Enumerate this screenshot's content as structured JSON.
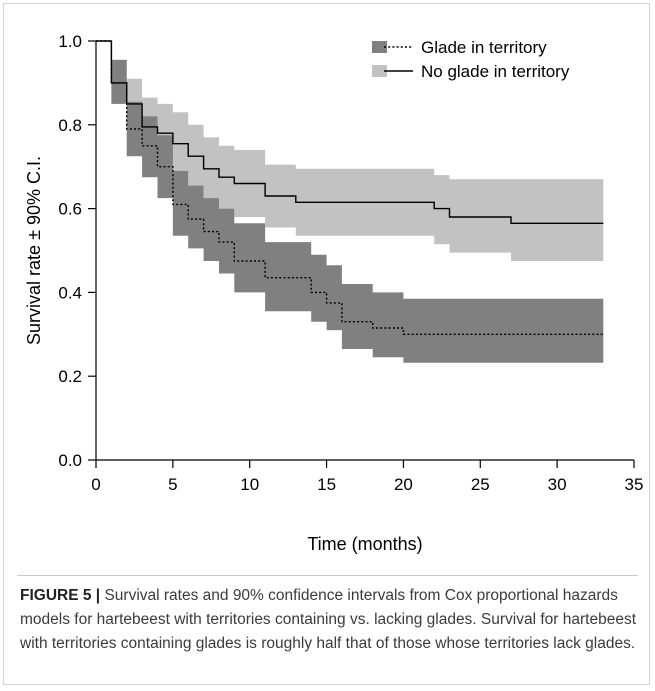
{
  "chart_data": {
    "type": "line",
    "subtype": "kaplan-meier step survival with confidence bands",
    "xlabel": "Time (months)",
    "ylabel": "Survival rate ± 90% C.I.",
    "xlim": [
      0,
      35
    ],
    "ylim": [
      0,
      1
    ],
    "x_ticks": [
      0,
      5,
      10,
      15,
      20,
      25,
      30,
      35
    ],
    "y_ticks": [
      0.0,
      0.2,
      0.4,
      0.6,
      0.8,
      1.0
    ],
    "x_tick_labels": [
      "0",
      "5",
      "10",
      "15",
      "20",
      "25",
      "30",
      "35"
    ],
    "y_tick_labels": [
      "0.0",
      "0.2",
      "0.4",
      "0.6",
      "0.8",
      "1.0"
    ],
    "grid": false,
    "legend_position": "top-right",
    "series": [
      {
        "name": "No glade in territory",
        "line_style": "solid",
        "band_color": "#c2c2c2",
        "x": [
          0,
          1,
          2,
          3,
          4,
          5,
          6,
          7,
          8,
          9,
          11,
          13,
          22,
          23,
          27,
          33
        ],
        "y": [
          1.0,
          0.9,
          0.85,
          0.795,
          0.78,
          0.755,
          0.725,
          0.695,
          0.675,
          0.66,
          0.63,
          0.615,
          0.6,
          0.58,
          0.565,
          0.565
        ],
        "lower": [
          1.0,
          0.85,
          0.79,
          0.74,
          0.71,
          0.68,
          0.65,
          0.62,
          0.6,
          0.58,
          0.555,
          0.535,
          0.515,
          0.495,
          0.475,
          0.475
        ],
        "upper": [
          1.0,
          0.955,
          0.91,
          0.865,
          0.85,
          0.83,
          0.8,
          0.77,
          0.75,
          0.74,
          0.705,
          0.695,
          0.68,
          0.67,
          0.67,
          0.67
        ]
      },
      {
        "name": "Glade in territory",
        "line_style": "dotted",
        "band_color": "#808080",
        "x": [
          0,
          1,
          2,
          3,
          4,
          5,
          6,
          7,
          8,
          9,
          11,
          14,
          15,
          16,
          18,
          20,
          33
        ],
        "y": [
          1.0,
          0.9,
          0.79,
          0.75,
          0.7,
          0.61,
          0.575,
          0.545,
          0.52,
          0.475,
          0.435,
          0.4,
          0.375,
          0.33,
          0.315,
          0.3,
          0.3
        ],
        "lower": [
          1.0,
          0.85,
          0.725,
          0.675,
          0.625,
          0.535,
          0.505,
          0.475,
          0.445,
          0.4,
          0.355,
          0.33,
          0.31,
          0.265,
          0.245,
          0.232,
          0.232
        ],
        "upper": [
          1.0,
          0.955,
          0.855,
          0.82,
          0.775,
          0.69,
          0.655,
          0.625,
          0.6,
          0.565,
          0.52,
          0.49,
          0.465,
          0.42,
          0.4,
          0.385,
          0.385
        ]
      }
    ]
  },
  "caption": {
    "label": "FIGURE 5 |",
    "text": " Survival rates and 90% confidence intervals from Cox proportional hazards models for hartebeest with territories containing vs. lacking glades. Survival for hartebeest with territories containing glades is roughly half that of those whose territories lack glades."
  }
}
